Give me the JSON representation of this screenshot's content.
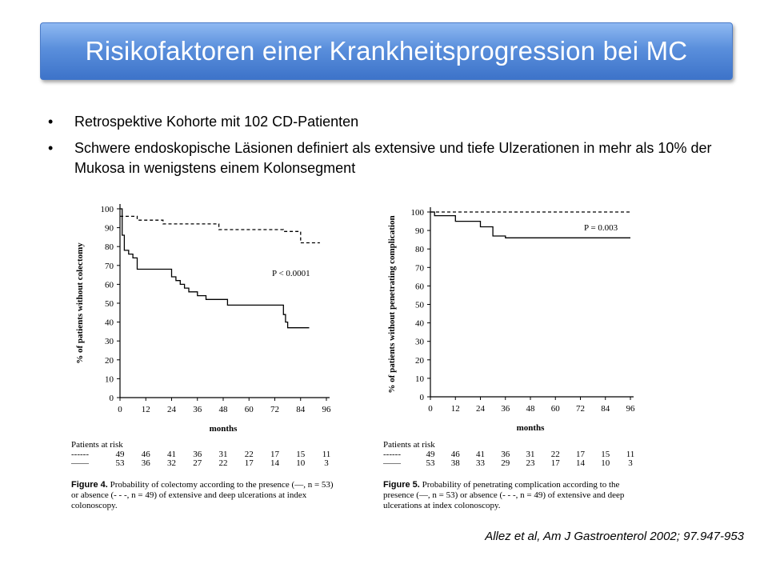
{
  "slide": {
    "title": "Risikofaktoren einer Krankheitsprogression bei MC",
    "bullets": [
      "Retrospektive Kohorte mit 102 CD-Patienten",
      "Schwere endoskopische Läsionen definiert als extensive und tiefe Ulzerationen in mehr als 10% der Mukosa in wenigstens einem Kolonsegment"
    ],
    "citation": "Allez et al, Am J Gastroenterol 2002; 97.947-953"
  },
  "chart_data": [
    {
      "type": "line",
      "ylabel": "% of patients without colectomy",
      "xlabel": "months",
      "xlim": [
        0,
        96
      ],
      "ylim": [
        0,
        100
      ],
      "x_ticks": [
        0,
        12,
        24,
        36,
        48,
        60,
        72,
        84,
        96
      ],
      "y_ticks": [
        0,
        10,
        20,
        30,
        40,
        50,
        60,
        70,
        80,
        90,
        100
      ],
      "annotation": "P < 0.0001",
      "series": [
        {
          "style": "dashed",
          "x": [
            0,
            8,
            8,
            20,
            20,
            46,
            46,
            76,
            76,
            80,
            80,
            84,
            84,
            88,
            88,
            93
          ],
          "y": [
            96,
            96,
            94,
            94,
            92,
            92,
            89,
            89,
            88,
            88,
            88,
            88,
            82,
            82,
            82,
            82
          ]
        },
        {
          "style": "solid",
          "x": [
            0,
            1,
            1,
            2,
            2,
            4,
            4,
            6,
            6,
            8,
            8,
            16,
            16,
            24,
            24,
            26,
            26,
            28,
            28,
            30,
            30,
            32,
            32,
            36,
            36,
            40,
            40,
            50,
            50,
            76,
            76,
            77,
            77,
            78,
            78,
            80,
            80,
            88
          ],
          "y": [
            100,
            100,
            86,
            86,
            78,
            78,
            76,
            76,
            74,
            74,
            68,
            68,
            68,
            68,
            64,
            64,
            62,
            62,
            60,
            60,
            58,
            58,
            56,
            56,
            54,
            54,
            52,
            52,
            49,
            49,
            44,
            44,
            40,
            40,
            37,
            37,
            37,
            37
          ]
        }
      ],
      "risk_table": {
        "header": "Patients at risk",
        "rows": [
          {
            "symbol": "------",
            "values": [
              "49",
              "46",
              "41",
              "36",
              "31",
              "22",
              "17",
              "15",
              "11"
            ]
          },
          {
            "symbol": "——",
            "values": [
              "53",
              "36",
              "32",
              "27",
              "22",
              "17",
              "14",
              "10",
              "3"
            ]
          }
        ]
      },
      "caption_label": "Figure 4.",
      "caption_text": "Probability of colectomy according to the presence (—, n = 53) or absence (- - -, n = 49) of extensive and deep ulcerations at index colonoscopy."
    },
    {
      "type": "line",
      "ylabel": "% of patients without penetrating complication",
      "xlabel": "months",
      "xlim": [
        0,
        96
      ],
      "ylim": [
        0,
        100
      ],
      "x_ticks": [
        0,
        12,
        24,
        36,
        48,
        60,
        72,
        84,
        96
      ],
      "y_ticks": [
        0,
        10,
        20,
        30,
        40,
        50,
        60,
        70,
        80,
        90,
        100
      ],
      "annotation": "P = 0.003",
      "series": [
        {
          "style": "dashed",
          "x": [
            0,
            96
          ],
          "y": [
            100,
            100
          ]
        },
        {
          "style": "solid",
          "x": [
            0,
            2,
            2,
            12,
            12,
            24,
            24,
            30,
            30,
            36,
            36,
            96
          ],
          "y": [
            100,
            100,
            98,
            98,
            95,
            95,
            92,
            92,
            87,
            87,
            86,
            86
          ]
        }
      ],
      "risk_table": {
        "header": "Patients at risk",
        "rows": [
          {
            "symbol": "------",
            "values": [
              "49",
              "46",
              "41",
              "36",
              "31",
              "22",
              "17",
              "15",
              "11"
            ]
          },
          {
            "symbol": "——",
            "values": [
              "53",
              "38",
              "33",
              "29",
              "23",
              "17",
              "14",
              "10",
              "3"
            ]
          }
        ]
      },
      "caption_label": "Figure 5.",
      "caption_text": "Probability of penetrating complication according to the presence (—, n = 53) or absence (- - -, n = 49) of extensive and deep ulcerations at index colonoscopy."
    }
  ]
}
